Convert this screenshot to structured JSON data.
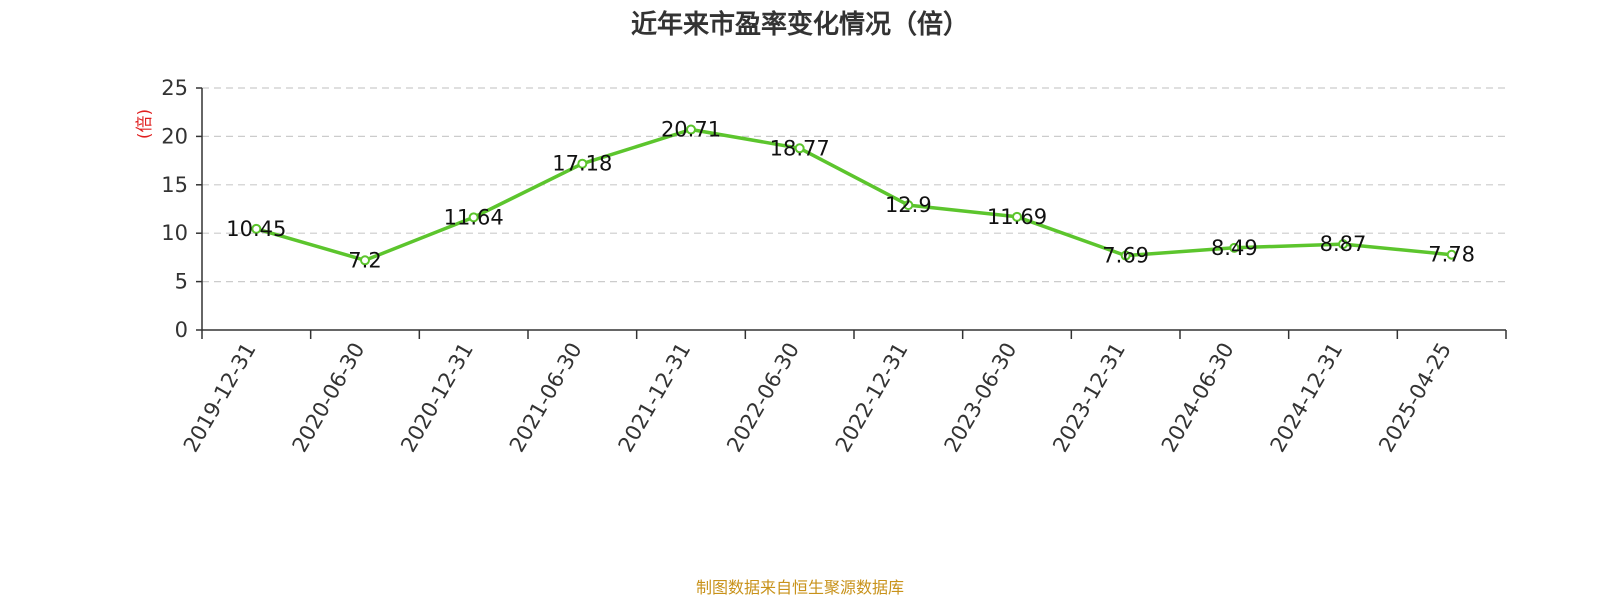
{
  "chart_data": {
    "type": "line",
    "title": "近年来市盈率变化情况（倍）",
    "ylabel": "(倍)",
    "xlabel": "",
    "categories": [
      "2019-12-31",
      "2020-06-30",
      "2020-12-31",
      "2021-06-30",
      "2021-12-31",
      "2022-06-30",
      "2022-12-31",
      "2023-06-30",
      "2023-12-31",
      "2024-06-30",
      "2024-12-31",
      "2025-04-25"
    ],
    "series": [
      {
        "values": [
          10.45,
          7.2,
          11.64,
          17.18,
          20.71,
          18.77,
          12.9,
          11.69,
          7.69,
          8.49,
          8.87,
          7.78
        ],
        "color": "#5cc52d"
      }
    ],
    "ylim": [
      0,
      25
    ],
    "yticks": [
      0,
      5,
      10,
      15,
      20,
      25
    ],
    "grid": true,
    "legend": "none"
  },
  "source_note": "制图数据来自恒生聚源数据库",
  "colors": {
    "line": "#5cc52d",
    "unit_label": "#e02020",
    "source_note": "#c8921a",
    "axis": "#333333",
    "grid": "#cccccc"
  }
}
